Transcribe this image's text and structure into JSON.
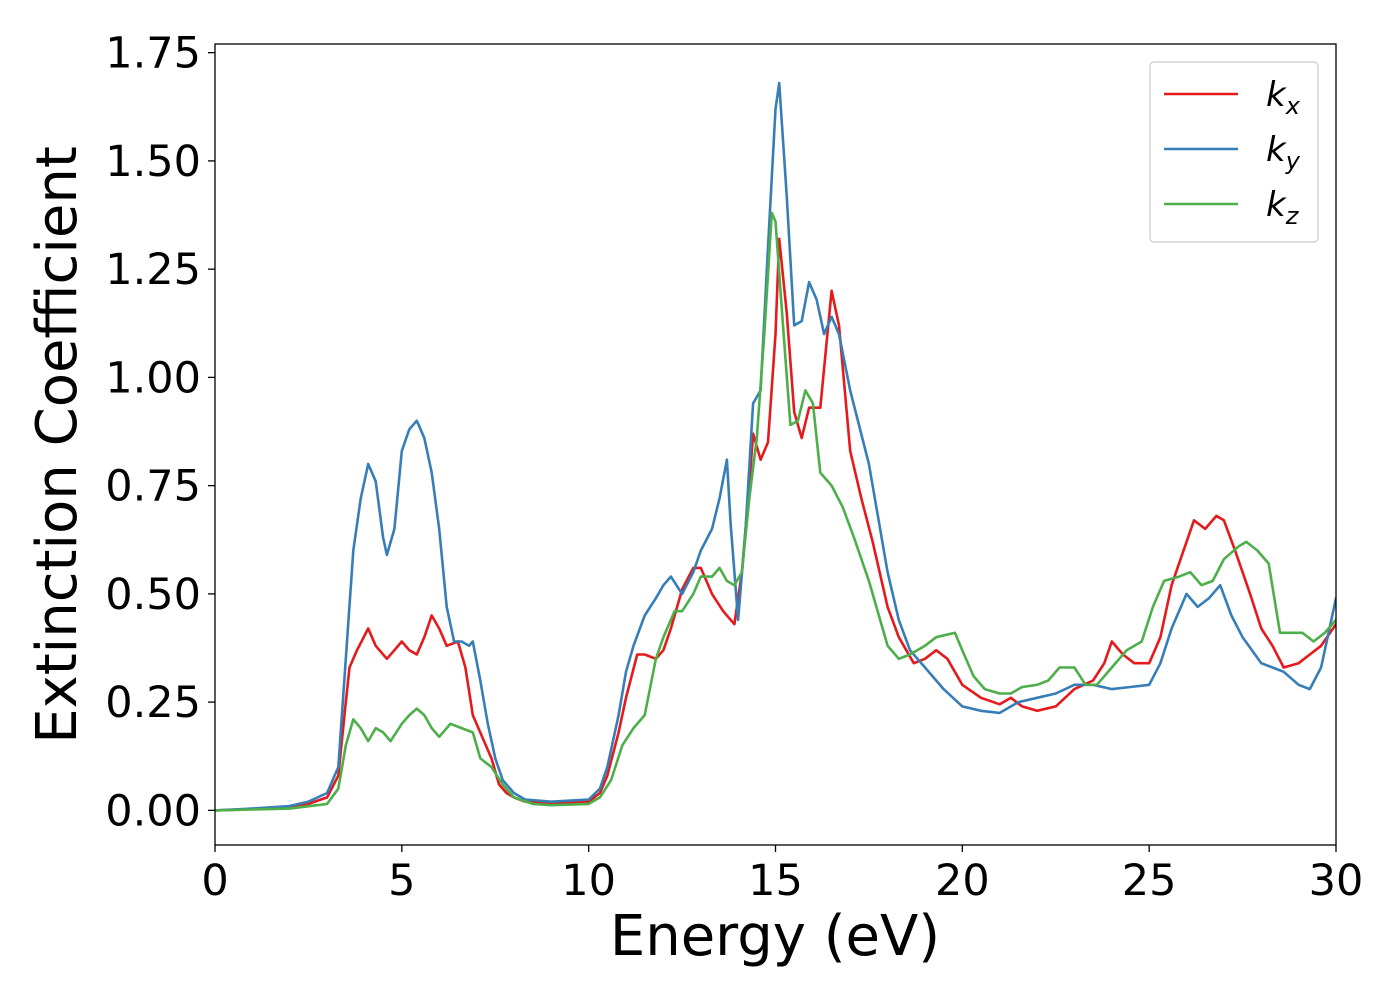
{
  "chart_data": {
    "type": "line",
    "xlabel": "Energy (eV)",
    "ylabel": "Extinction Coefficient",
    "xlim": [
      0,
      30
    ],
    "ylim": [
      -0.08,
      1.77
    ],
    "xticks": [
      0,
      5,
      10,
      15,
      20,
      25,
      30
    ],
    "xtick_labels": [
      "0",
      "5",
      "10",
      "15",
      "20",
      "25",
      "30"
    ],
    "yticks": [
      0,
      0.25,
      0.5,
      0.75,
      1.0,
      1.25,
      1.5,
      1.75
    ],
    "ytick_labels": [
      "0.00",
      "0.25",
      "0.50",
      "0.75",
      "1.00",
      "1.25",
      "1.50",
      "1.75"
    ],
    "grid": false,
    "legend_position": "top-right",
    "series": [
      {
        "name": "k_x",
        "label_main": "k",
        "label_sub": "x",
        "color": "#e41a1c",
        "points": [
          [
            0,
            0
          ],
          [
            1,
            0.003
          ],
          [
            2,
            0.008
          ],
          [
            2.5,
            0.015
          ],
          [
            3,
            0.03
          ],
          [
            3.3,
            0.08
          ],
          [
            3.5,
            0.25
          ],
          [
            3.6,
            0.33
          ],
          [
            3.8,
            0.37
          ],
          [
            4.1,
            0.42
          ],
          [
            4.3,
            0.38
          ],
          [
            4.6,
            0.35
          ],
          [
            4.8,
            0.37
          ],
          [
            5,
            0.39
          ],
          [
            5.2,
            0.37
          ],
          [
            5.4,
            0.36
          ],
          [
            5.6,
            0.4
          ],
          [
            5.8,
            0.45
          ],
          [
            6,
            0.42
          ],
          [
            6.2,
            0.38
          ],
          [
            6.5,
            0.39
          ],
          [
            6.7,
            0.33
          ],
          [
            6.9,
            0.22
          ],
          [
            7.2,
            0.16
          ],
          [
            7.4,
            0.12
          ],
          [
            7.6,
            0.06
          ],
          [
            7.8,
            0.04
          ],
          [
            8,
            0.03
          ],
          [
            8.3,
            0.02
          ],
          [
            9,
            0.015
          ],
          [
            10,
            0.02
          ],
          [
            10.3,
            0.04
          ],
          [
            10.5,
            0.08
          ],
          [
            10.8,
            0.18
          ],
          [
            11,
            0.26
          ],
          [
            11.3,
            0.36
          ],
          [
            11.5,
            0.36
          ],
          [
            11.8,
            0.35
          ],
          [
            12,
            0.37
          ],
          [
            12.2,
            0.42
          ],
          [
            12.5,
            0.51
          ],
          [
            12.8,
            0.56
          ],
          [
            13,
            0.56
          ],
          [
            13.3,
            0.5
          ],
          [
            13.6,
            0.46
          ],
          [
            13.9,
            0.43
          ],
          [
            14.1,
            0.55
          ],
          [
            14.3,
            0.75
          ],
          [
            14.4,
            0.87
          ],
          [
            14.6,
            0.81
          ],
          [
            14.8,
            0.85
          ],
          [
            15,
            1.1
          ],
          [
            15.1,
            1.32
          ],
          [
            15.3,
            1.15
          ],
          [
            15.5,
            0.92
          ],
          [
            15.7,
            0.86
          ],
          [
            15.9,
            0.93
          ],
          [
            16.2,
            0.93
          ],
          [
            16.5,
            1.2
          ],
          [
            16.7,
            1.12
          ],
          [
            17,
            0.83
          ],
          [
            17.3,
            0.72
          ],
          [
            17.6,
            0.62
          ],
          [
            18,
            0.47
          ],
          [
            18.3,
            0.4
          ],
          [
            18.7,
            0.34
          ],
          [
            19,
            0.35
          ],
          [
            19.3,
            0.37
          ],
          [
            19.6,
            0.35
          ],
          [
            20,
            0.29
          ],
          [
            20.5,
            0.26
          ],
          [
            21,
            0.245
          ],
          [
            21.3,
            0.26
          ],
          [
            21.6,
            0.24
          ],
          [
            22,
            0.23
          ],
          [
            22.5,
            0.24
          ],
          [
            23,
            0.28
          ],
          [
            23.5,
            0.3
          ],
          [
            23.8,
            0.34
          ],
          [
            24,
            0.39
          ],
          [
            24.3,
            0.36
          ],
          [
            24.6,
            0.34
          ],
          [
            25,
            0.34
          ],
          [
            25.3,
            0.4
          ],
          [
            25.6,
            0.52
          ],
          [
            26,
            0.62
          ],
          [
            26.2,
            0.67
          ],
          [
            26.5,
            0.65
          ],
          [
            26.8,
            0.68
          ],
          [
            27,
            0.67
          ],
          [
            27.3,
            0.6
          ],
          [
            27.7,
            0.5
          ],
          [
            28,
            0.42
          ],
          [
            28.3,
            0.38
          ],
          [
            28.6,
            0.33
          ],
          [
            29,
            0.34
          ],
          [
            29.3,
            0.36
          ],
          [
            29.6,
            0.38
          ],
          [
            30,
            0.43
          ]
        ]
      },
      {
        "name": "k_y",
        "label_main": "k",
        "label_sub": "y",
        "color": "#377eb8",
        "points": [
          [
            0,
            0
          ],
          [
            1,
            0.004
          ],
          [
            2,
            0.01
          ],
          [
            2.5,
            0.02
          ],
          [
            3,
            0.04
          ],
          [
            3.3,
            0.1
          ],
          [
            3.5,
            0.35
          ],
          [
            3.7,
            0.6
          ],
          [
            3.9,
            0.72
          ],
          [
            4.1,
            0.8
          ],
          [
            4.3,
            0.76
          ],
          [
            4.5,
            0.63
          ],
          [
            4.6,
            0.59
          ],
          [
            4.8,
            0.65
          ],
          [
            5,
            0.83
          ],
          [
            5.2,
            0.88
          ],
          [
            5.4,
            0.9
          ],
          [
            5.6,
            0.86
          ],
          [
            5.8,
            0.78
          ],
          [
            6,
            0.65
          ],
          [
            6.2,
            0.47
          ],
          [
            6.4,
            0.39
          ],
          [
            6.6,
            0.39
          ],
          [
            6.8,
            0.38
          ],
          [
            6.9,
            0.39
          ],
          [
            7.1,
            0.3
          ],
          [
            7.3,
            0.2
          ],
          [
            7.5,
            0.12
          ],
          [
            7.7,
            0.07
          ],
          [
            8,
            0.04
          ],
          [
            8.3,
            0.025
          ],
          [
            9,
            0.02
          ],
          [
            10,
            0.025
          ],
          [
            10.3,
            0.05
          ],
          [
            10.5,
            0.1
          ],
          [
            10.8,
            0.22
          ],
          [
            11,
            0.32
          ],
          [
            11.2,
            0.38
          ],
          [
            11.5,
            0.45
          ],
          [
            11.8,
            0.49
          ],
          [
            12,
            0.52
          ],
          [
            12.2,
            0.54
          ],
          [
            12.5,
            0.5
          ],
          [
            12.8,
            0.55
          ],
          [
            13,
            0.6
          ],
          [
            13.3,
            0.65
          ],
          [
            13.5,
            0.72
          ],
          [
            13.7,
            0.81
          ],
          [
            13.8,
            0.66
          ],
          [
            14,
            0.44
          ],
          [
            14.2,
            0.65
          ],
          [
            14.4,
            0.94
          ],
          [
            14.6,
            0.97
          ],
          [
            14.8,
            1.3
          ],
          [
            15,
            1.62
          ],
          [
            15.1,
            1.68
          ],
          [
            15.3,
            1.42
          ],
          [
            15.5,
            1.12
          ],
          [
            15.7,
            1.13
          ],
          [
            15.9,
            1.22
          ],
          [
            16.1,
            1.18
          ],
          [
            16.3,
            1.1
          ],
          [
            16.5,
            1.14
          ],
          [
            16.7,
            1.1
          ],
          [
            17,
            0.97
          ],
          [
            17.5,
            0.8
          ],
          [
            18,
            0.55
          ],
          [
            18.3,
            0.44
          ],
          [
            18.6,
            0.37
          ],
          [
            19,
            0.33
          ],
          [
            19.5,
            0.28
          ],
          [
            20,
            0.24
          ],
          [
            20.5,
            0.23
          ],
          [
            21,
            0.225
          ],
          [
            21.5,
            0.25
          ],
          [
            22,
            0.26
          ],
          [
            22.5,
            0.27
          ],
          [
            23,
            0.29
          ],
          [
            23.5,
            0.29
          ],
          [
            24,
            0.28
          ],
          [
            24.5,
            0.285
          ],
          [
            25,
            0.29
          ],
          [
            25.3,
            0.34
          ],
          [
            25.6,
            0.42
          ],
          [
            26,
            0.5
          ],
          [
            26.3,
            0.47
          ],
          [
            26.6,
            0.49
          ],
          [
            26.9,
            0.52
          ],
          [
            27.2,
            0.45
          ],
          [
            27.5,
            0.4
          ],
          [
            28,
            0.34
          ],
          [
            28.3,
            0.33
          ],
          [
            28.6,
            0.32
          ],
          [
            29,
            0.29
          ],
          [
            29.3,
            0.28
          ],
          [
            29.6,
            0.33
          ],
          [
            30,
            0.49
          ]
        ]
      },
      {
        "name": "k_z",
        "label_main": "k",
        "label_sub": "z",
        "color": "#4daf4a",
        "points": [
          [
            0,
            0
          ],
          [
            1,
            0.002
          ],
          [
            2,
            0.004
          ],
          [
            3,
            0.015
          ],
          [
            3.3,
            0.05
          ],
          [
            3.5,
            0.15
          ],
          [
            3.7,
            0.21
          ],
          [
            3.9,
            0.19
          ],
          [
            4.1,
            0.16
          ],
          [
            4.3,
            0.19
          ],
          [
            4.5,
            0.18
          ],
          [
            4.7,
            0.16
          ],
          [
            5,
            0.2
          ],
          [
            5.2,
            0.22
          ],
          [
            5.4,
            0.235
          ],
          [
            5.6,
            0.22
          ],
          [
            5.8,
            0.19
          ],
          [
            6,
            0.17
          ],
          [
            6.3,
            0.2
          ],
          [
            6.6,
            0.19
          ],
          [
            6.9,
            0.18
          ],
          [
            7.1,
            0.12
          ],
          [
            7.4,
            0.1
          ],
          [
            7.7,
            0.06
          ],
          [
            8,
            0.03
          ],
          [
            8.5,
            0.015
          ],
          [
            9,
            0.012
          ],
          [
            10,
            0.015
          ],
          [
            10.3,
            0.03
          ],
          [
            10.6,
            0.07
          ],
          [
            10.9,
            0.15
          ],
          [
            11.2,
            0.19
          ],
          [
            11.5,
            0.22
          ],
          [
            11.8,
            0.35
          ],
          [
            12,
            0.4
          ],
          [
            12.3,
            0.46
          ],
          [
            12.5,
            0.46
          ],
          [
            12.8,
            0.5
          ],
          [
            13,
            0.54
          ],
          [
            13.3,
            0.54
          ],
          [
            13.5,
            0.56
          ],
          [
            13.7,
            0.53
          ],
          [
            13.9,
            0.52
          ],
          [
            14.1,
            0.55
          ],
          [
            14.3,
            0.72
          ],
          [
            14.5,
            0.86
          ],
          [
            14.7,
            1.1
          ],
          [
            14.9,
            1.38
          ],
          [
            15,
            1.36
          ],
          [
            15.2,
            1.12
          ],
          [
            15.4,
            0.89
          ],
          [
            15.6,
            0.9
          ],
          [
            15.8,
            0.97
          ],
          [
            16,
            0.94
          ],
          [
            16.2,
            0.78
          ],
          [
            16.5,
            0.75
          ],
          [
            16.8,
            0.7
          ],
          [
            17.1,
            0.63
          ],
          [
            17.5,
            0.53
          ],
          [
            18,
            0.38
          ],
          [
            18.3,
            0.35
          ],
          [
            18.6,
            0.36
          ],
          [
            19,
            0.38
          ],
          [
            19.3,
            0.4
          ],
          [
            19.8,
            0.41
          ],
          [
            20,
            0.37
          ],
          [
            20.3,
            0.31
          ],
          [
            20.6,
            0.28
          ],
          [
            21,
            0.27
          ],
          [
            21.3,
            0.27
          ],
          [
            21.6,
            0.285
          ],
          [
            22,
            0.29
          ],
          [
            22.3,
            0.3
          ],
          [
            22.6,
            0.33
          ],
          [
            23,
            0.33
          ],
          [
            23.3,
            0.29
          ],
          [
            23.6,
            0.29
          ],
          [
            24,
            0.33
          ],
          [
            24.4,
            0.37
          ],
          [
            24.8,
            0.39
          ],
          [
            25.1,
            0.47
          ],
          [
            25.4,
            0.53
          ],
          [
            25.8,
            0.54
          ],
          [
            26.1,
            0.55
          ],
          [
            26.4,
            0.52
          ],
          [
            26.7,
            0.53
          ],
          [
            27,
            0.58
          ],
          [
            27.4,
            0.61
          ],
          [
            27.6,
            0.62
          ],
          [
            27.9,
            0.6
          ],
          [
            28.2,
            0.57
          ],
          [
            28.5,
            0.41
          ],
          [
            28.8,
            0.41
          ],
          [
            29.1,
            0.41
          ],
          [
            29.4,
            0.39
          ],
          [
            29.7,
            0.41
          ],
          [
            30,
            0.44
          ]
        ]
      }
    ]
  }
}
